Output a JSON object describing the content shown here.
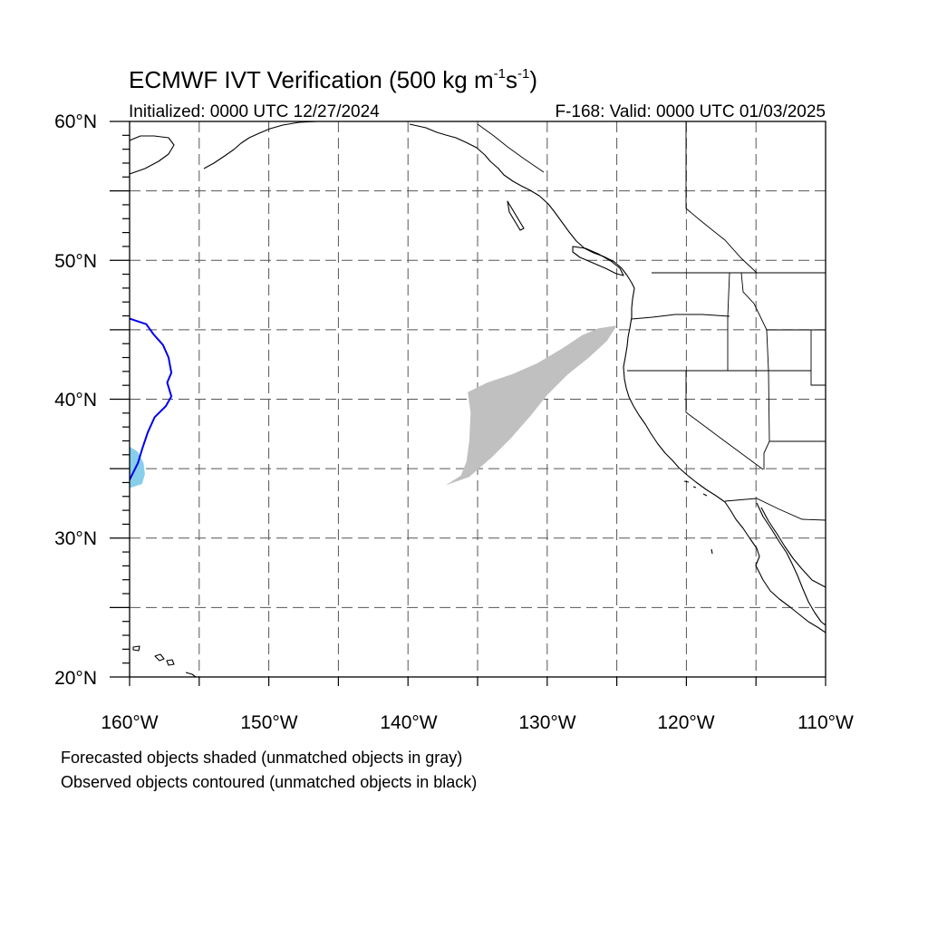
{
  "title": {
    "main": "ECMWF IVT Verification (500 kg m",
    "exp1": "-1",
    "mid": "s",
    "exp2": "-1",
    "close": ")"
  },
  "subtitle": {
    "left": "Initialized: 0000 UTC 12/27/2024",
    "right": "F-168: Valid: 0000 UTC 01/03/2025"
  },
  "map": {
    "lon_range": [
      -160,
      -110
    ],
    "lat_range": [
      20,
      60
    ],
    "lon_ticks": [
      {
        "value": -160,
        "label": "160°W"
      },
      {
        "value": -150,
        "label": "150°W"
      },
      {
        "value": -140,
        "label": "140°W"
      },
      {
        "value": -130,
        "label": "130°W"
      },
      {
        "value": -120,
        "label": "120°W"
      },
      {
        "value": -110,
        "label": "110°W"
      }
    ],
    "lat_ticks": [
      {
        "value": 60,
        "label": "60°N"
      },
      {
        "value": 50,
        "label": "50°N"
      },
      {
        "value": 40,
        "label": "40°N"
      },
      {
        "value": 30,
        "label": "30°N"
      },
      {
        "value": 20,
        "label": "20°N"
      }
    ],
    "grid_lon_spacing": 5,
    "grid_lat_spacing": 5,
    "grid": "dashed",
    "colors": {
      "unmatched_forecast_shading": "#c0c0c0",
      "matched_forecast_shading": "#87ceeb",
      "matched_observed_contour": "#0000ee",
      "coastline": "#000000"
    },
    "objects": [
      {
        "kind": "forecast",
        "matched": false,
        "shading": "gray",
        "outline": [
          [
            -137.3,
            33.8
          ],
          [
            -136.2,
            34.5
          ],
          [
            -135.8,
            35.5
          ],
          [
            -135.6,
            37
          ],
          [
            -135.5,
            39
          ],
          [
            -135.7,
            40.5
          ],
          [
            -134.3,
            41.2
          ],
          [
            -132.5,
            41.8
          ],
          [
            -130.7,
            42.6
          ],
          [
            -129,
            43.6
          ],
          [
            -127.5,
            44.6
          ],
          [
            -126.3,
            45.1
          ],
          [
            -125,
            45.3
          ],
          [
            -125.7,
            44.2
          ],
          [
            -127,
            43
          ],
          [
            -128.5,
            41.8
          ],
          [
            -130,
            40.3
          ],
          [
            -131.2,
            38.8
          ],
          [
            -132.6,
            37.2
          ],
          [
            -134,
            35.8
          ],
          [
            -135.6,
            34.4
          ]
        ]
      },
      {
        "kind": "forecast",
        "matched": true,
        "shading": "light blue",
        "outline": [
          [
            -160,
            33.6
          ],
          [
            -159.1,
            33.9
          ],
          [
            -158.9,
            34.6
          ],
          [
            -159,
            35.4
          ],
          [
            -159.4,
            36.2
          ],
          [
            -160,
            36.6
          ]
        ]
      },
      {
        "kind": "observed",
        "matched": true,
        "contour": "blue",
        "line": [
          [
            -160,
            45.8
          ],
          [
            -158.8,
            45.4
          ],
          [
            -158.3,
            44.7
          ],
          [
            -157.6,
            43.9
          ],
          [
            -157.2,
            43
          ],
          [
            -157,
            41.9
          ],
          [
            -157.3,
            41.2
          ],
          [
            -157,
            40.2
          ],
          [
            -157.4,
            39.5
          ],
          [
            -158.2,
            38.7
          ],
          [
            -158.7,
            37.6
          ],
          [
            -159.1,
            36.4
          ],
          [
            -159.4,
            35.4
          ],
          [
            -160,
            34.2
          ]
        ]
      }
    ]
  },
  "footnotes": {
    "line1": "Forecasted objects shaded (unmatched objects in gray)",
    "line2": "Observed objects contoured (unmatched objects in black)"
  }
}
